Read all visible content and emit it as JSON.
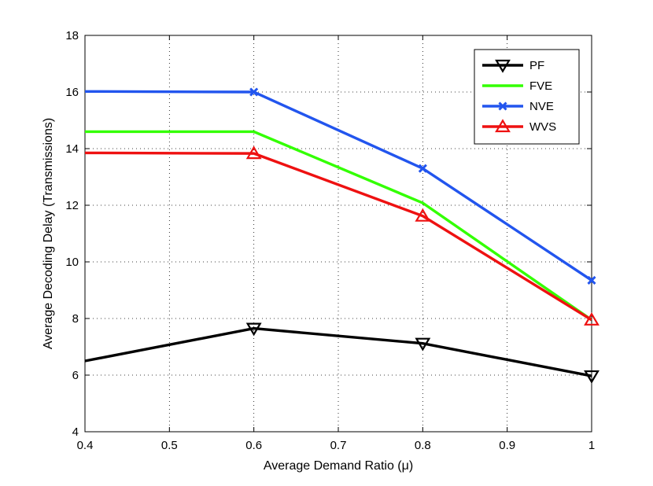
{
  "chart_data": {
    "type": "line",
    "title": "",
    "xlabel": "Average Demand Ratio (μ)",
    "ylabel": "Average Decoding Delay (Transmissions)",
    "xlim": [
      0.4,
      1.0
    ],
    "ylim": [
      4,
      18
    ],
    "xticks": [
      0.4,
      0.5,
      0.6,
      0.7,
      0.8,
      0.9,
      1.0
    ],
    "xtick_labels": [
      "0.4",
      "0.5",
      "0.6",
      "0.7",
      "0.8",
      "0.9",
      "1"
    ],
    "yticks": [
      4,
      6,
      8,
      10,
      12,
      14,
      16,
      18
    ],
    "ytick_labels": [
      "4",
      "6",
      "8",
      "10",
      "12",
      "14",
      "16",
      "18"
    ],
    "grid": true,
    "legend_position": "top-right",
    "series": [
      {
        "name": "PF",
        "color": "#000000",
        "marker": "triangle-down",
        "x": [
          0.4,
          0.6,
          0.8,
          1.0
        ],
        "values": [
          6.5,
          7.65,
          7.12,
          5.97
        ]
      },
      {
        "name": "FVE",
        "color": "#33ff00",
        "marker": "none",
        "x": [
          0.4,
          0.6,
          0.8,
          1.0
        ],
        "values": [
          14.6,
          14.6,
          12.08,
          7.95
        ]
      },
      {
        "name": "NVE",
        "color": "#2255ee",
        "marker": "x",
        "x": [
          0.4,
          0.6,
          0.8,
          1.0
        ],
        "values": [
          16.02,
          16.0,
          13.3,
          9.35
        ]
      },
      {
        "name": "WVS",
        "color": "#ee1111",
        "marker": "triangle-up",
        "x": [
          0.4,
          0.6,
          0.8,
          1.0
        ],
        "values": [
          13.85,
          13.83,
          11.62,
          7.95
        ]
      }
    ]
  }
}
